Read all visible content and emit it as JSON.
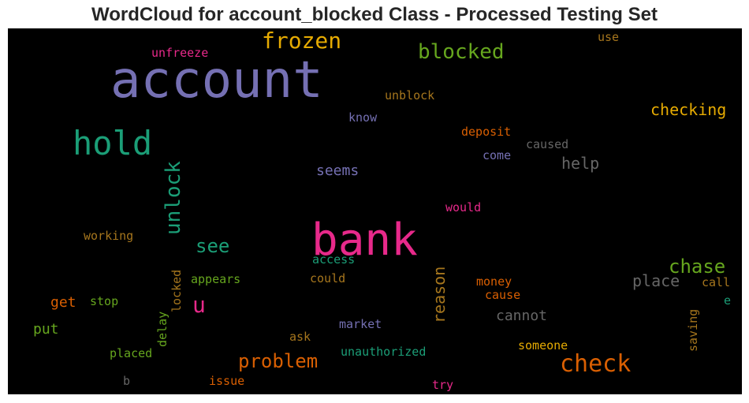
{
  "chart_data": {
    "type": "wordcloud",
    "title": "WordCloud for account_blocked Class - Processed Testing Set",
    "background": "#000000",
    "words": [
      {
        "text": "account",
        "size": 64,
        "color": "#7570b3"
      },
      {
        "text": "bank",
        "size": 56,
        "color": "#e7298a"
      },
      {
        "text": "hold",
        "size": 42,
        "color": "#1b9e77"
      },
      {
        "text": "frozen",
        "size": 28,
        "color": "#e6ab02"
      },
      {
        "text": "blocked",
        "size": 26,
        "color": "#66a61e"
      },
      {
        "text": "check",
        "size": 30,
        "color": "#d95f02"
      },
      {
        "text": "unlock",
        "size": 26,
        "color": "#1b9e77"
      },
      {
        "text": "u",
        "size": 28,
        "color": "#e7298a"
      },
      {
        "text": "chase",
        "size": 24,
        "color": "#66a61e"
      },
      {
        "text": "problem",
        "size": 24,
        "color": "#d95f02"
      },
      {
        "text": "see",
        "size": 24,
        "color": "#1b9e77"
      },
      {
        "text": "checking",
        "size": 20,
        "color": "#e6ab02"
      },
      {
        "text": "place",
        "size": 20,
        "color": "#666666"
      },
      {
        "text": "help",
        "size": 20,
        "color": "#666666"
      },
      {
        "text": "reason",
        "size": 20,
        "color": "#a6761d"
      },
      {
        "text": "seems",
        "size": 18,
        "color": "#7570b3"
      },
      {
        "text": "cannot",
        "size": 18,
        "color": "#666666"
      },
      {
        "text": "get",
        "size": 18,
        "color": "#d95f02"
      },
      {
        "text": "put",
        "size": 18,
        "color": "#66a61e"
      },
      {
        "text": "unfreeze",
        "size": 15,
        "color": "#e7298a"
      },
      {
        "text": "unblock",
        "size": 15,
        "color": "#a6761d"
      },
      {
        "text": "know",
        "size": 15,
        "color": "#7570b3"
      },
      {
        "text": "deposit",
        "size": 15,
        "color": "#d95f02"
      },
      {
        "text": "caused",
        "size": 15,
        "color": "#666666"
      },
      {
        "text": "come",
        "size": 15,
        "color": "#7570b3"
      },
      {
        "text": "use",
        "size": 15,
        "color": "#a6761d"
      },
      {
        "text": "would",
        "size": 15,
        "color": "#e7298a"
      },
      {
        "text": "working",
        "size": 15,
        "color": "#a6761d"
      },
      {
        "text": "access",
        "size": 15,
        "color": "#1b9e77"
      },
      {
        "text": "could",
        "size": 15,
        "color": "#a6761d"
      },
      {
        "text": "appears",
        "size": 15,
        "color": "#66a61e"
      },
      {
        "text": "money",
        "size": 15,
        "color": "#d95f02"
      },
      {
        "text": "cause",
        "size": 15,
        "color": "#d95f02"
      },
      {
        "text": "call",
        "size": 15,
        "color": "#a6761d"
      },
      {
        "text": "e",
        "size": 15,
        "color": "#1b9e77"
      },
      {
        "text": "stop",
        "size": 15,
        "color": "#66a61e"
      },
      {
        "text": "locked",
        "size": 15,
        "color": "#a6761d"
      },
      {
        "text": "delay",
        "size": 15,
        "color": "#66a61e"
      },
      {
        "text": "market",
        "size": 15,
        "color": "#7570b3"
      },
      {
        "text": "saving",
        "size": 15,
        "color": "#a6761d"
      },
      {
        "text": "ask",
        "size": 15,
        "color": "#a6761d"
      },
      {
        "text": "unauthorized",
        "size": 15,
        "color": "#1b9e77"
      },
      {
        "text": "someone",
        "size": 15,
        "color": "#e6ab02"
      },
      {
        "text": "placed",
        "size": 15,
        "color": "#66a61e"
      },
      {
        "text": "b",
        "size": 15,
        "color": "#666666"
      },
      {
        "text": "issue",
        "size": 15,
        "color": "#d95f02"
      },
      {
        "text": "try",
        "size": 15,
        "color": "#e7298a"
      }
    ]
  }
}
